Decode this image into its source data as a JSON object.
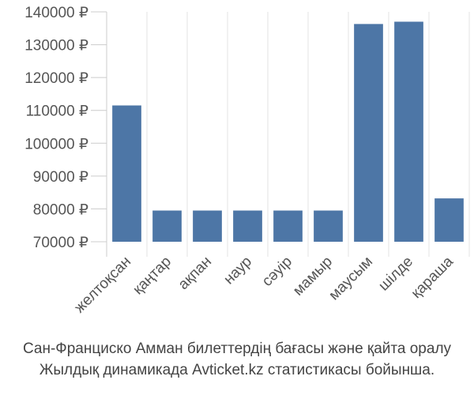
{
  "chart_data": {
    "type": "bar",
    "categories": [
      "желтоқсан",
      "қаңтар",
      "ақпан",
      "наур",
      "сәуір",
      "мамыр",
      "маусым",
      "шілде",
      "қараша"
    ],
    "values": [
      111500,
      79500,
      79500,
      79500,
      79500,
      79500,
      136300,
      137000,
      83200
    ],
    "color": "#4d76a6",
    "ylim": [
      70000,
      140000
    ],
    "yticks": [
      {
        "value": 70000,
        "label": "70000 ₽"
      },
      {
        "value": 80000,
        "label": "80000 ₽"
      },
      {
        "value": 90000,
        "label": "90000 ₽"
      },
      {
        "value": 100000,
        "label": "100000 ₽"
      },
      {
        "value": 110000,
        "label": "110000 ₽"
      },
      {
        "value": 120000,
        "label": "120000 ₽"
      },
      {
        "value": 130000,
        "label": "130000 ₽"
      },
      {
        "value": 140000,
        "label": "140000 ₽"
      }
    ],
    "grid": true,
    "caption": [
      "Сан-Франциско Амман билеттердің бағасы және қайта оралу",
      "Жылдық динамикада Avticket.kz статистикасы бойынша."
    ]
  }
}
